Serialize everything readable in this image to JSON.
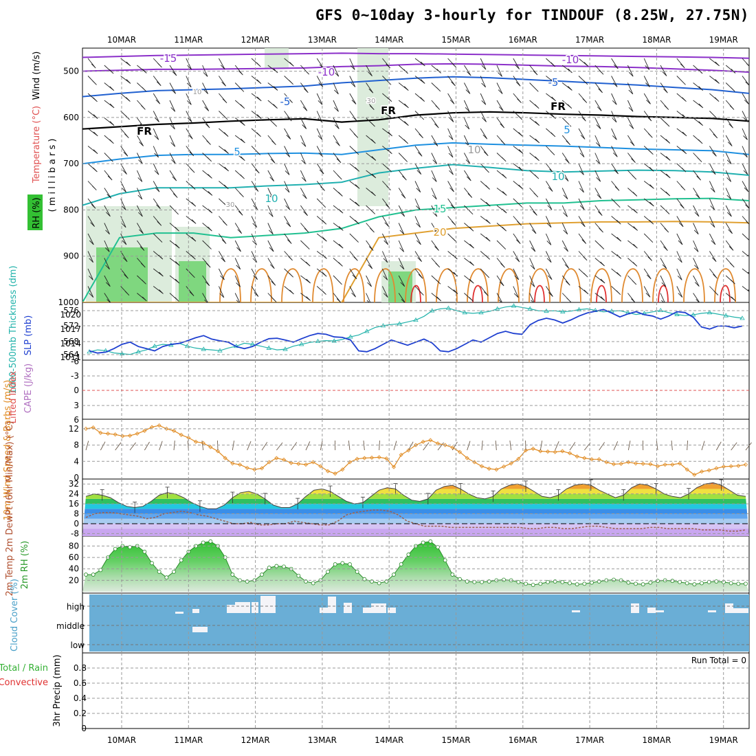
{
  "title": "GFS 0~10day 3-hourly for TINDOUF (8.25W, 27.75N)",
  "dates": [
    "10MAR",
    "11MAR",
    "12MAR",
    "13MAR",
    "14MAR",
    "15MAR",
    "16MAR",
    "17MAR",
    "18MAR",
    "19MAR"
  ],
  "colors": {
    "temp_contour": "#8a2be2",
    "rh_fill": "#3cb371",
    "thickness": "#20b2aa",
    "slp": "#1e3fd0",
    "wind10": "#e08a20",
    "barb": "#555555",
    "cloud": "#6aaed6",
    "dewpt": "#9a6050",
    "li_zero": "#e05050"
  },
  "panels": {
    "upper": {
      "ylabels": {
        "wind": "Wind (m/s)",
        "temperature": "Temperature (°C)",
        "rh": "RH (%)",
        "pressure": "( m i l l i b a r s )"
      },
      "yticks": [
        "500",
        "600",
        "700",
        "800",
        "900",
        "1000"
      ],
      "contour_labels": [
        "-15",
        "-10",
        "-10",
        "-5",
        "-5",
        "FR",
        "FR",
        "FR",
        "5",
        "5",
        "10",
        "10",
        "10",
        "15",
        "20",
        "30",
        "30",
        "10"
      ],
      "chart_data": {
        "type": "contour",
        "y_unit": "mb",
        "ylim": [
          1000,
          450
        ],
        "isotherms": [
          {
            "label": "-15",
            "p": [
              470,
              468,
              466,
              465,
              464,
              463,
              462,
              461,
              462,
              462,
              463,
              464,
              465,
              466,
              467,
              468,
              469,
              470,
              472
            ]
          },
          {
            "label": "-10",
            "p": [
              500,
              498,
              496,
              496,
              495,
              494,
              493,
              490,
              488,
              485,
              484,
              485,
              487,
              489,
              490,
              492,
              495,
              498,
              502
            ]
          },
          {
            "label": "-5",
            "p": [
              555,
              548,
              542,
              540,
              538,
              535,
              532,
              525,
              520,
              515,
              512,
              514,
              518,
              522,
              526,
              530,
              535,
              540,
              548
            ]
          },
          {
            "label": "FR",
            "p": [
              625,
              620,
              615,
              612,
              608,
              605,
              603,
              610,
              605,
              595,
              590,
              588,
              590,
              593,
              595,
              598,
              600,
              602,
              608
            ]
          },
          {
            "label": "5",
            "p": [
              700,
              690,
              682,
              680,
              680,
              678,
              677,
              680,
              670,
              660,
              655,
              658,
              660,
              662,
              665,
              668,
              670,
              672,
              680
            ]
          },
          {
            "label": "10",
            "p": [
              790,
              765,
              752,
              752,
              752,
              748,
              745,
              740,
              720,
              710,
              702,
              708,
              715,
              718,
              716,
              714,
              715,
              718,
              725
            ]
          },
          {
            "label": "15",
            "p": [
              1000,
              860,
              850,
              850,
              860,
              855,
              850,
              840,
              815,
              800,
              795,
              790,
              785,
              785,
              780,
              778,
              776,
              775,
              780
            ]
          },
          {
            "label": "20",
            "p": [
              1000,
              1000,
              1000,
              1000,
              1000,
              1000,
              1000,
              1000,
              860,
              850,
              840,
              835,
              830,
              828,
              826,
              826,
              825,
              826,
              828
            ]
          }
        ]
      }
    },
    "pressure": {
      "ylabel_thk": "1000-500mb Thickness (dm)",
      "ylabel_slp": "SLP (mb)",
      "yticks_left": [
        "576",
        "572",
        "568",
        "564"
      ],
      "yticks_right": [
        "1020",
        "1017",
        "1014",
        "1011"
      ],
      "chart_data": {
        "type": "line",
        "x_step_hours": 3,
        "series": [
          {
            "name": "1000-500mb Thickness (dm)",
            "ylim": [
              563,
              577
            ],
            "values": [
              564.5,
              565,
              564.8,
              564.2,
              564,
              563.8,
              564.5,
              565,
              566,
              566.5,
              566.3,
              566.8,
              566,
              565.5,
              565.2,
              565,
              564.8,
              565.5,
              566,
              566.8,
              566.5,
              566,
              565.5,
              565,
              565.2,
              566,
              566.5,
              567,
              567.3,
              567.5,
              567.4,
              567.8,
              568.5,
              569,
              570,
              571,
              571.5,
              571.8,
              572,
              572.5,
              573,
              574,
              575.5,
              576,
              576.2,
              575.5,
              575,
              574.8,
              575,
              575.3,
              576,
              576.5,
              576.8,
              576.4,
              576,
              575.5,
              575.4,
              575.5,
              575.2,
              575.4,
              575.8,
              576,
              575.6,
              575.2,
              575.4,
              575.5,
              575,
              574.5,
              574.8,
              575.2,
              575.6,
              575,
              574.5,
              574.2,
              574.4,
              574.8,
              575,
              574.6,
              574.2,
              573.8,
              573.5
            ]
          },
          {
            "name": "SLP (mb)",
            "ylim": [
              1010,
              1022
            ],
            "values": [
              1011.5,
              1011,
              1011.2,
              1012,
              1013,
              1013.5,
              1012.5,
              1012,
              1011.5,
              1012.5,
              1013,
              1013.2,
              1013.8,
              1014.5,
              1015,
              1014.2,
              1013.8,
              1013.5,
              1012.5,
              1012,
              1012.5,
              1013.5,
              1014.3,
              1014.4,
              1014,
              1013.5,
              1014.3,
              1015,
              1015.5,
              1015.3,
              1014.7,
              1014.6,
              1014,
              1011.5,
              1011.3,
              1012,
              1013,
              1014,
              1013.4,
              1012.8,
              1013.5,
              1014.2,
              1013.3,
              1011.5,
              1011.3,
              1012,
              1013,
              1014,
              1013.5,
              1014.5,
              1015.5,
              1016,
              1015.5,
              1015.3,
              1017.5,
              1018.5,
              1019,
              1018.6,
              1017.9,
              1018.6,
              1019.5,
              1020.2,
              1020.6,
              1021,
              1020.2,
              1019.3,
              1020,
              1020.5,
              1019.8,
              1019.5,
              1018.8,
              1019.5,
              1020.5,
              1020.3,
              1019.2,
              1017,
              1016.5,
              1017.2,
              1017.2,
              1016.8,
              1017.2
            ]
          }
        ]
      }
    },
    "li": {
      "ylabel_li": "Lifted Index",
      "ylabel_cape": "CAPE (J/kg)",
      "yticks": [
        "-6",
        "-3",
        "0",
        "3",
        "6"
      ],
      "chart_data": {
        "type": "line",
        "ylim": [
          -6,
          6
        ],
        "values": []
      }
    },
    "wind": {
      "ylabel": "10m Wind Speed & Barbs (m/s)",
      "yticks": [
        "12",
        "8",
        "4",
        "0"
      ],
      "chart_data": {
        "type": "line",
        "ylim": [
          0,
          14
        ],
        "values": [
          12,
          12.3,
          11,
          10.8,
          10.6,
          10.2,
          10.3,
          10.8,
          11.5,
          12.4,
          12.8,
          12,
          11.5,
          10.5,
          9.8,
          8.8,
          8.5,
          7.5,
          6.5,
          4.8,
          3.5,
          3.2,
          2.4,
          2,
          2.3,
          3.8,
          4.8,
          4.4,
          3.6,
          3.4,
          3.2,
          3.8,
          2.8,
          1.6,
          1,
          2,
          3.8,
          4.6,
          4.8,
          4.9,
          5,
          4.7,
          2.6,
          5.6,
          6.7,
          8,
          8.8,
          9.2,
          8.4,
          8,
          7.4,
          6.3,
          4.8,
          3.8,
          2.8,
          2.2,
          2,
          2.7,
          3.5,
          4.6,
          6.7,
          7.1,
          6.5,
          6.4,
          6.3,
          6.5,
          6,
          5.2,
          4.8,
          4.5,
          4.5,
          3.8,
          3.3,
          3.4,
          3.8,
          3.5,
          3.4,
          3.3,
          2.8,
          3.2,
          3.2,
          3.5,
          2,
          0.7,
          1.5,
          1.8,
          2.3,
          2.7,
          2.8,
          2.9,
          3.2
        ]
      }
    },
    "temp": {
      "ylabel": "2m Temp 2m DewPt (6hr Min/Max) (°C)",
      "yticks": [
        "32",
        "24",
        "16",
        "8",
        "0",
        "-8"
      ],
      "chart_data": {
        "type": "area",
        "ylim": [
          -10,
          36
        ],
        "series": [
          {
            "name": "2m Temp",
            "values": [
              22,
              24,
              23,
              21,
              17,
              14,
              13,
              14,
              18,
              23,
              25,
              24,
              21,
              17,
              14,
              12,
              12,
              15,
              21,
              25,
              26,
              24,
              20,
              15,
              13,
              13,
              16,
              22,
              27,
              28,
              26,
              22,
              18,
              16,
              17,
              22,
              27,
              29,
              28,
              23,
              19,
              18,
              20,
              27,
              30,
              31,
              28,
              24,
              21,
              20,
              22,
              28,
              31,
              32,
              30,
              26,
              22,
              21,
              23,
              28,
              31,
              32,
              31,
              27,
              24,
              21,
              23,
              29,
              32,
              31,
              28,
              24,
              22,
              21,
              24,
              29,
              32,
              33,
              31,
              27,
              23,
              22
            ]
          },
          {
            "name": "2m DewPt",
            "values": [
              5,
              8,
              9,
              9,
              8,
              7,
              6,
              4,
              5,
              8,
              9,
              10,
              9,
              7,
              6,
              4,
              2,
              0,
              0,
              1,
              -1,
              -1,
              0,
              0,
              2,
              1,
              0,
              -1,
              -1,
              2,
              7,
              9,
              10,
              11,
              11,
              10,
              7,
              2,
              0,
              -2,
              -2,
              -2,
              -3,
              -3,
              -3,
              -3,
              -3,
              -3,
              -3,
              -3,
              -3,
              -4,
              -4,
              -3,
              -3,
              -4,
              -4,
              -3,
              -2,
              -2,
              -3,
              -4,
              -4,
              -4,
              -4,
              -3,
              -3,
              -4,
              -4,
              -4,
              -4,
              -5,
              -5,
              -5,
              -6,
              -6,
              -5
            ]
          }
        ]
      }
    },
    "rh": {
      "ylabel": "2m RH (%)",
      "yticks": [
        "80",
        "60",
        "40",
        "20"
      ],
      "chart_data": {
        "type": "area",
        "ylim": [
          0,
          95
        ],
        "values": [
          30,
          30,
          38,
          60,
          75,
          80,
          78,
          80,
          70,
          50,
          35,
          25,
          35,
          55,
          70,
          80,
          86,
          88,
          80,
          60,
          30,
          20,
          18,
          20,
          30,
          42,
          45,
          44,
          40,
          28,
          18,
          15,
          20,
          35,
          48,
          50,
          48,
          35,
          22,
          18,
          15,
          18,
          30,
          48,
          65,
          80,
          86,
          88,
          78,
          55,
          30,
          22,
          18,
          17,
          17,
          18,
          20,
          21,
          20,
          17,
          14,
          12,
          14,
          17,
          18,
          17,
          15,
          13,
          14,
          16,
          18,
          20,
          21,
          20,
          16,
          14,
          13,
          16,
          19,
          20,
          19,
          17,
          15,
          13,
          15,
          17,
          18,
          17,
          15,
          14,
          14
        ]
      }
    },
    "cloud": {
      "ylabel": "Cloud Cover (%)",
      "ylevels": [
        "high",
        "middle",
        "low"
      ],
      "chart_data": {
        "type": "heatmap",
        "levels": [
          "high",
          "middle",
          "low"
        ]
      }
    },
    "precip": {
      "ylabel": "3hr Precip (mm)",
      "ylabel_total": "Total / Rain",
      "ylabel_conv": "Convective",
      "run_total": "Run Total = 0",
      "yticks": [
        "0.8",
        "0.6",
        "0.4",
        "0.2",
        "0"
      ],
      "chart_data": {
        "type": "bar",
        "ylim": [
          0,
          1
        ],
        "values": []
      }
    }
  }
}
